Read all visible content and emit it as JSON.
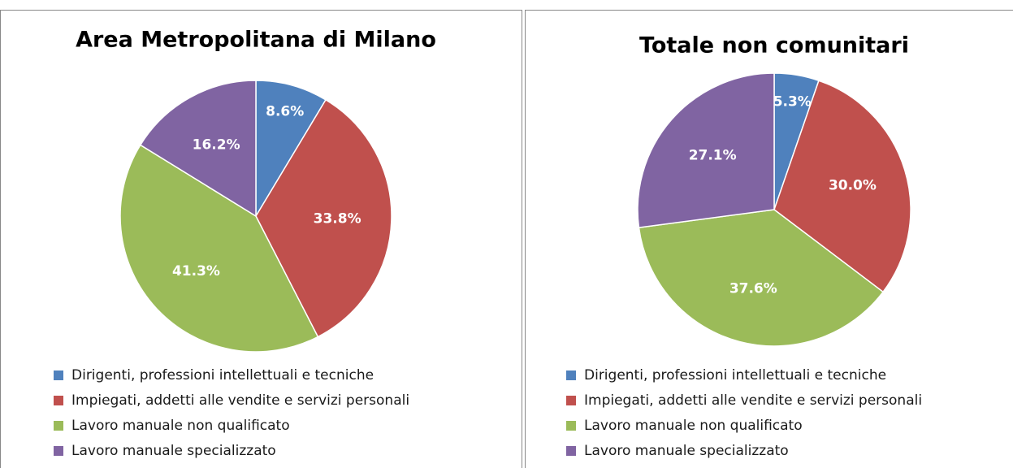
{
  "chart_data": [
    {
      "type": "pie",
      "title": "Area Metropolitana di Milano",
      "categories": [
        "Dirigenti, professioni intellettuali e tecniche",
        "Impiegati, addetti alle vendite e servizi personali",
        "Lavoro manuale non qualificato",
        "Lavoro manuale specializzato"
      ],
      "values": [
        8.6,
        33.8,
        41.3,
        16.2
      ],
      "value_labels": [
        "8.6%",
        "33.8%",
        "41.3%",
        "16.2%"
      ],
      "colors": [
        "#4f81bd",
        "#c0504d",
        "#9bbb59",
        "#8064a2"
      ],
      "legend": "bottom"
    },
    {
      "type": "pie",
      "title": "Totale non comunitari",
      "categories": [
        "Dirigenti, professioni intellettuali e tecniche",
        "Impiegati, addetti alle vendite e servizi personali",
        "Lavoro manuale non qualificato",
        "Lavoro manuale specializzato"
      ],
      "values": [
        5.3,
        30.0,
        37.6,
        27.1
      ],
      "value_labels": [
        "5.3%",
        "30.0%",
        "37.6%",
        "27.1%"
      ],
      "colors": [
        "#4f81bd",
        "#c0504d",
        "#9bbb59",
        "#8064a2"
      ],
      "legend": "bottom"
    }
  ]
}
